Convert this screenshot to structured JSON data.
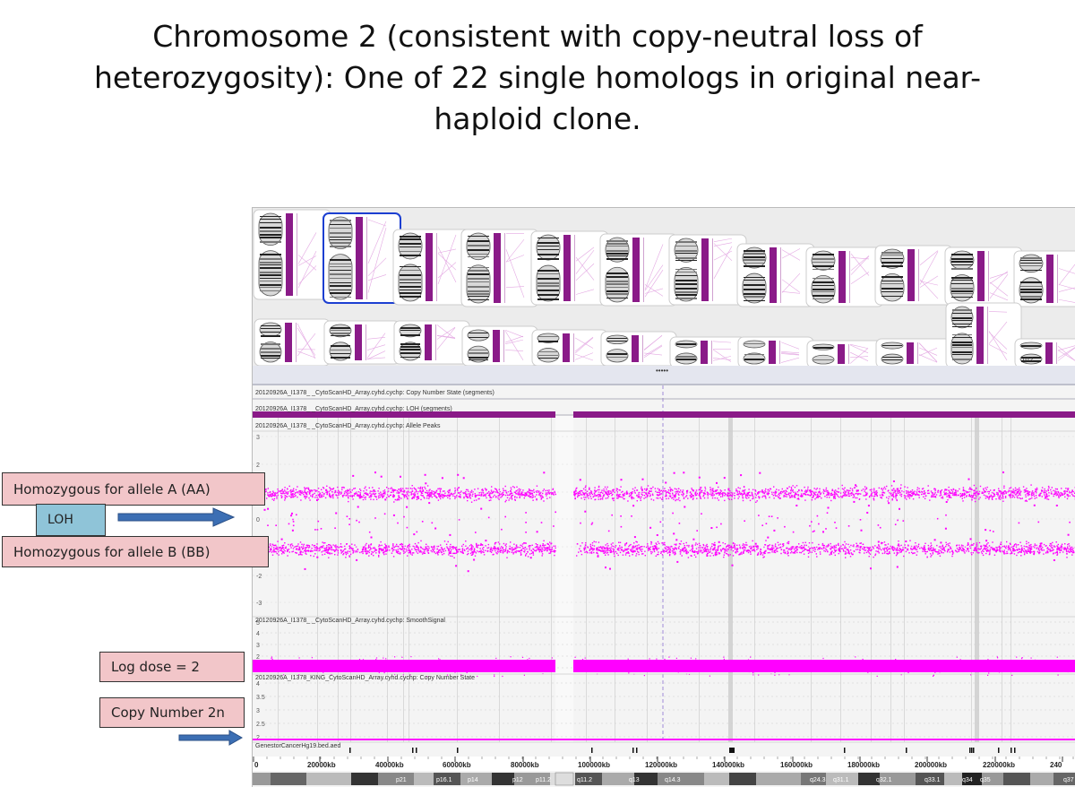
{
  "slide": {
    "title_lines": [
      "Chromosome 2 (consistent with copy-neutral loss of",
      "heterozygosity): One of 22 single homologs in original near-",
      "haploid clone."
    ]
  },
  "callouts": {
    "aa": "Homozygous for allele A (AA)",
    "loh": "LOH",
    "bb": "Homozygous for allele B (BB)",
    "log_dose": "Log dose = 2",
    "copy_number": "Copy Number 2n"
  },
  "tracks": {
    "copy_number_state_segments": "20120926A_I1378_      _CytoScanHD_Array.cyhd.cychp: Copy Number State (segments)",
    "loh_segments": "20120926A_I1378_      _CytoScanHD_Array.cyhd.cychp: LOH (segments)",
    "allele_peaks": "20120926A_I1378_      _CytoScanHD_Array.cyhd.cychp: Allele Peaks",
    "smooth_signal": "20120926A_I1378_      _CytoScanHD_Array.cyhd.cychp: SmoothSignal",
    "copy_number_state": "20120926A_I1378_KING_CytoScanHD_Array.cyhd.cychp: Copy Number State",
    "annotation": "GenestorCancerHg19.bed.aed"
  },
  "allele_axis": [
    "3",
    "2",
    "1",
    "0",
    "-1",
    "-2",
    "-3"
  ],
  "smooth_axis": [
    "5",
    "4",
    "3",
    "2",
    "1"
  ],
  "cn_axis": [
    "4",
    "3.5",
    "3",
    "2.5",
    "2"
  ],
  "karyogram_label": "q12",
  "position_axis": [
    "0",
    "20000kb",
    "40000kb",
    "60000kb",
    "80000kb",
    "100000kb",
    "120000kb",
    "140000kb",
    "160000kb",
    "180000kb",
    "200000kb",
    "220000kb",
    "240"
  ],
  "bands": [
    "p21",
    "p16.1",
    "p14",
    "p12",
    "p11.2",
    "q11.2",
    "q13",
    "q14.3",
    "q24.3",
    "q31.1",
    "q32.1",
    "q33.1",
    "q34",
    "q35",
    "q37"
  ],
  "colors": {
    "snp": "#ff00ff",
    "loh_bar": "#8a1a88",
    "callout": "#f2c6c9",
    "loh_box": "#8fc4d8",
    "arrow": "#3c6fb4"
  }
}
